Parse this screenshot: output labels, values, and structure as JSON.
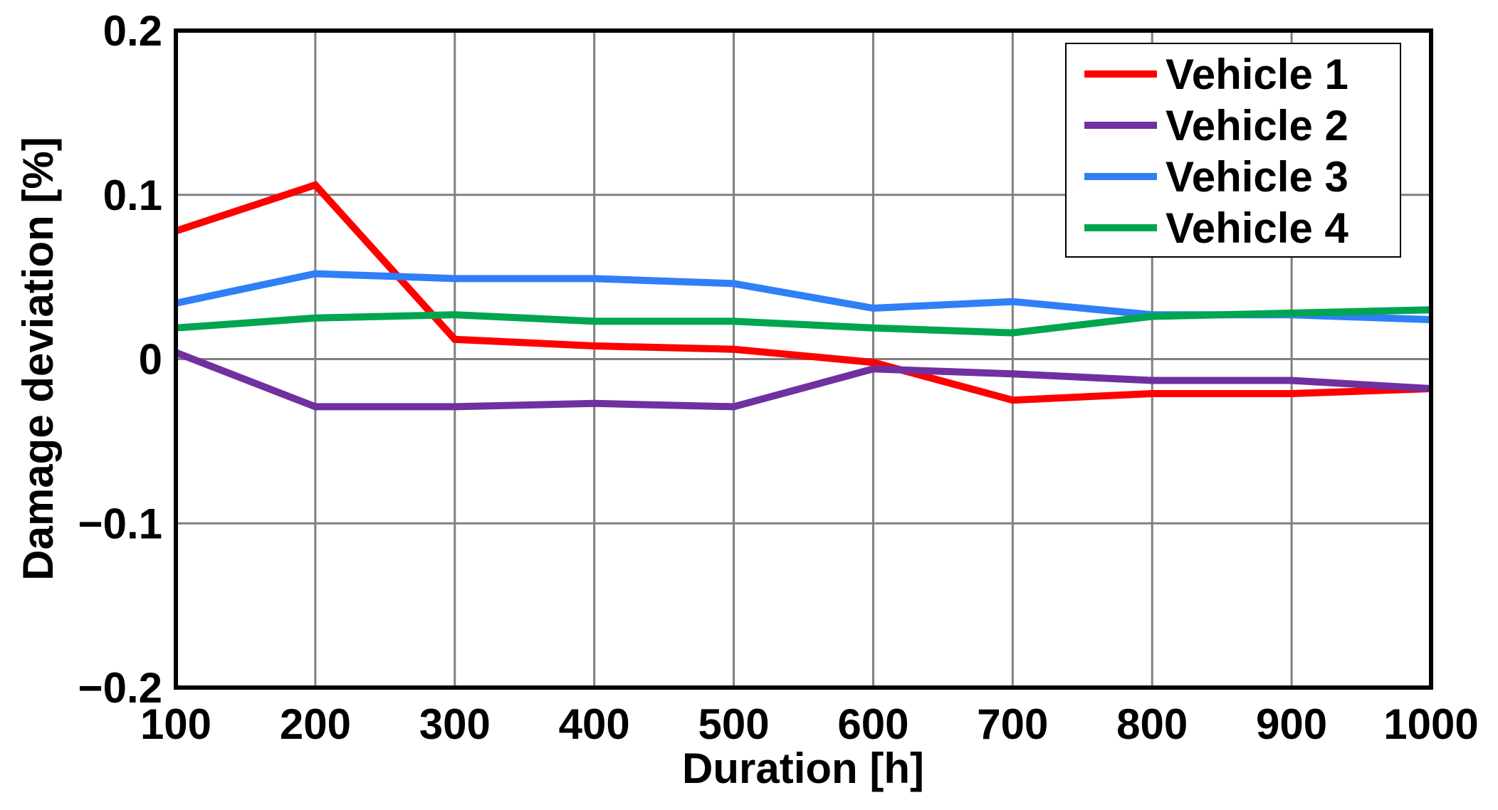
{
  "chart_data": {
    "type": "line",
    "title": "",
    "xlabel": "Duration [h]",
    "ylabel": "Damage deviation [%]",
    "x": [
      100,
      200,
      300,
      400,
      500,
      600,
      700,
      800,
      900,
      1000
    ],
    "xlim": [
      100,
      1000
    ],
    "ylim": [
      -0.2,
      0.2
    ],
    "x_ticks": [
      "100",
      "200",
      "300",
      "400",
      "500",
      "600",
      "700",
      "800",
      "900",
      "1000"
    ],
    "y_ticks": [
      {
        "value": 0.2,
        "label": "0.2"
      },
      {
        "value": 0.1,
        "label": "0.1"
      },
      {
        "value": 0,
        "label": "0"
      },
      {
        "value": -0.1,
        "label": "−0.1"
      },
      {
        "value": -0.2,
        "label": "−0.2"
      }
    ],
    "grid": true,
    "legend_position": "top-right",
    "series": [
      {
        "name": "Vehicle 1",
        "color": "#ff0000",
        "values": [
          0.078,
          0.106,
          0.012,
          0.008,
          0.006,
          -0.002,
          -0.025,
          -0.021,
          -0.021,
          -0.018
        ]
      },
      {
        "name": "Vehicle 2",
        "color": "#7030a0",
        "values": [
          0.004,
          -0.029,
          -0.029,
          -0.027,
          -0.029,
          -0.006,
          -0.009,
          -0.013,
          -0.013,
          -0.018
        ]
      },
      {
        "name": "Vehicle 3",
        "color": "#2f7ff7",
        "values": [
          0.034,
          0.052,
          0.049,
          0.049,
          0.046,
          0.031,
          0.035,
          0.027,
          0.027,
          0.024
        ]
      },
      {
        "name": "Vehicle 4",
        "color": "#00a550",
        "values": [
          0.019,
          0.025,
          0.027,
          0.023,
          0.023,
          0.019,
          0.016,
          0.026,
          0.028,
          0.03
        ]
      }
    ]
  }
}
